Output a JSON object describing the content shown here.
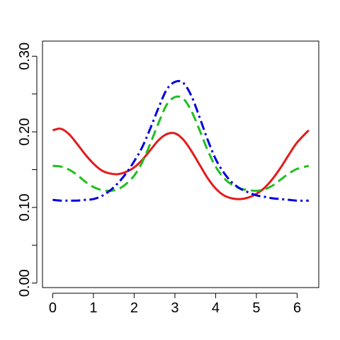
{
  "chart_data": {
    "type": "line",
    "title": "",
    "xlabel": "",
    "ylabel": "",
    "xlim": [
      -0.25,
      6.53
    ],
    "ylim": [
      -0.006,
      0.32
    ],
    "x_ticks": [
      0,
      1,
      2,
      3,
      4,
      5,
      6
    ],
    "x_tick_labels": [
      "0",
      "1",
      "2",
      "3",
      "4",
      "5",
      "6"
    ],
    "y_ticks": [
      0.0,
      0.05,
      0.1,
      0.15,
      0.2,
      0.25,
      0.3
    ],
    "y_tick_labels": [
      "0.00",
      "",
      "0.10",
      "",
      "0.20",
      "",
      "0.30"
    ],
    "grid": false,
    "legend": "none",
    "x": [
      0.0,
      0.2,
      0.4,
      0.6,
      0.8,
      1.0,
      1.2,
      1.4,
      1.6,
      1.8,
      2.0,
      2.2,
      2.4,
      2.6,
      2.8,
      3.0,
      3.2,
      3.4,
      3.6,
      3.8,
      4.0,
      4.2,
      4.4,
      4.6,
      4.8,
      5.0,
      5.2,
      5.4,
      5.6,
      5.8,
      6.0,
      6.283
    ],
    "series": [
      {
        "color": "#e31a1c",
        "dash": "solid",
        "values": [
          0.202,
          0.204,
          0.197,
          0.184,
          0.17,
          0.158,
          0.149,
          0.145,
          0.144,
          0.147,
          0.153,
          0.163,
          0.176,
          0.189,
          0.197,
          0.198,
          0.19,
          0.175,
          0.157,
          0.139,
          0.125,
          0.116,
          0.112,
          0.111,
          0.113,
          0.118,
          0.126,
          0.138,
          0.153,
          0.17,
          0.186,
          0.202
        ]
      },
      {
        "color": "#1fbf1f",
        "dash": "dashed",
        "values": [
          0.155,
          0.154,
          0.15,
          0.143,
          0.134,
          0.127,
          0.123,
          0.122,
          0.124,
          0.131,
          0.142,
          0.16,
          0.185,
          0.212,
          0.236,
          0.246,
          0.244,
          0.228,
          0.203,
          0.176,
          0.154,
          0.139,
          0.13,
          0.125,
          0.123,
          0.122,
          0.124,
          0.129,
          0.137,
          0.145,
          0.151,
          0.155
        ]
      },
      {
        "color": "#0000dd",
        "dash": "dashdot",
        "values": [
          0.11,
          0.109,
          0.109,
          0.109,
          0.11,
          0.111,
          0.115,
          0.122,
          0.132,
          0.145,
          0.161,
          0.18,
          0.205,
          0.232,
          0.256,
          0.266,
          0.265,
          0.248,
          0.22,
          0.19,
          0.164,
          0.146,
          0.133,
          0.125,
          0.12,
          0.116,
          0.114,
          0.112,
          0.111,
          0.11,
          0.109,
          0.109
        ]
      }
    ]
  }
}
